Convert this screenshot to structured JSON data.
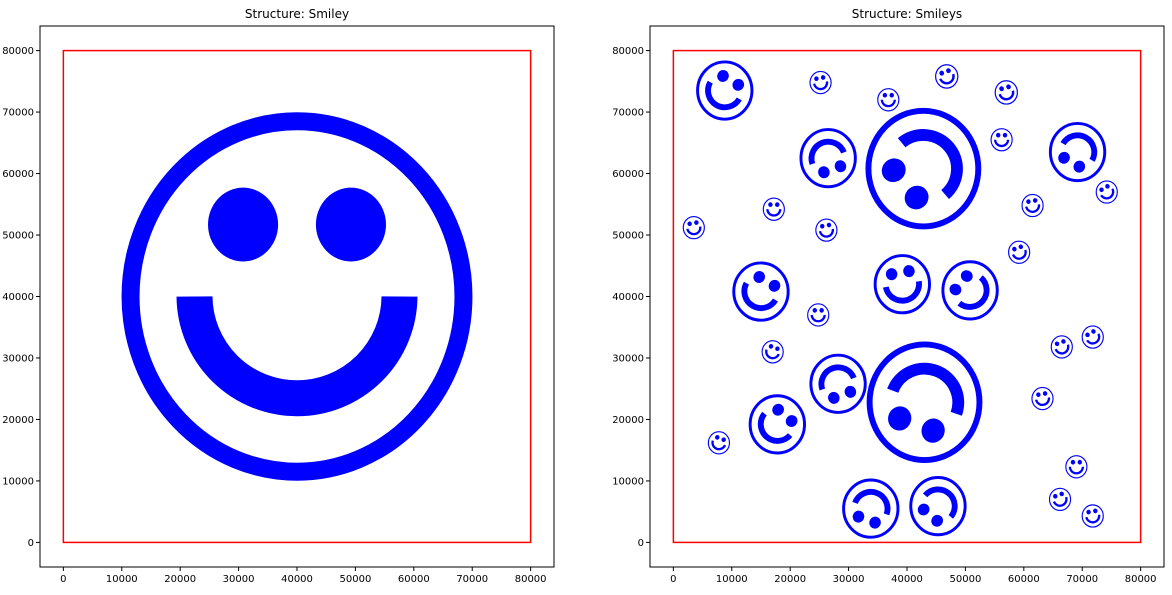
{
  "chart_data": [
    {
      "type": "scatter",
      "title": "Structure: Smiley",
      "xlim": [
        -4000,
        84000
      ],
      "ylim": [
        -4000,
        84000
      ],
      "xticks": [
        0,
        10000,
        20000,
        30000,
        40000,
        50000,
        60000,
        70000,
        80000
      ],
      "yticks": [
        0,
        10000,
        20000,
        30000,
        40000,
        50000,
        60000,
        70000,
        80000
      ],
      "grid": false,
      "colors": {
        "boundary": "#ff0000",
        "shape": "#0000ff"
      },
      "boundary": {
        "x0": 0,
        "y0": 0,
        "x1": 80000,
        "y1": 80000
      },
      "smileys": [
        {
          "x": 40000,
          "y": 40000,
          "r": 30000
        }
      ]
    },
    {
      "type": "scatter",
      "title": "Structure: Smileys",
      "xlim": [
        -4000,
        84000
      ],
      "ylim": [
        -4000,
        84000
      ],
      "xticks": [
        0,
        10000,
        20000,
        30000,
        40000,
        50000,
        60000,
        70000,
        80000
      ],
      "yticks": [
        0,
        10000,
        20000,
        30000,
        40000,
        50000,
        60000,
        70000,
        80000
      ],
      "grid": false,
      "colors": {
        "boundary": "#ff0000",
        "shape": "#0000ff"
      },
      "boundary": {
        "x0": 0,
        "y0": 0,
        "x1": 80000,
        "y1": 80000
      },
      "smileys": [
        {
          "x": 8800,
          "y": 73500,
          "r": 4900,
          "rot": -30
        },
        {
          "x": 25200,
          "y": 74800,
          "r": 1900,
          "rot": 10
        },
        {
          "x": 36800,
          "y": 72000,
          "r": 1900,
          "rot": 0
        },
        {
          "x": 46800,
          "y": 75800,
          "r": 2000,
          "rot": 20
        },
        {
          "x": 57000,
          "y": 73200,
          "r": 2000,
          "rot": 15
        },
        {
          "x": 26500,
          "y": 62500,
          "r": 4900,
          "rot": 200
        },
        {
          "x": 42800,
          "y": 60800,
          "r": 9900,
          "rot": 130
        },
        {
          "x": 56200,
          "y": 65500,
          "r": 1900,
          "rot": 0
        },
        {
          "x": 69200,
          "y": 63500,
          "r": 4900,
          "rot": 150
        },
        {
          "x": 61500,
          "y": 54800,
          "r": 1900,
          "rot": 10
        },
        {
          "x": 74200,
          "y": 57000,
          "r": 1900,
          "rot": 30
        },
        {
          "x": 3500,
          "y": 51200,
          "r": 1900,
          "rot": 10
        },
        {
          "x": 17200,
          "y": 54200,
          "r": 1900,
          "rot": 0
        },
        {
          "x": 26200,
          "y": 50800,
          "r": 1900,
          "rot": 10
        },
        {
          "x": 59200,
          "y": 47200,
          "r": 1900,
          "rot": 20
        },
        {
          "x": 15000,
          "y": 40800,
          "r": 4900,
          "rot": -30
        },
        {
          "x": 39200,
          "y": 42000,
          "r": 4900,
          "rot": 10
        },
        {
          "x": 50800,
          "y": 41000,
          "r": 4900,
          "rot": 50
        },
        {
          "x": 24800,
          "y": 37000,
          "r": 1900,
          "rot": 0
        },
        {
          "x": 66500,
          "y": 31800,
          "r": 1900,
          "rot": 20
        },
        {
          "x": 71800,
          "y": 33400,
          "r": 1900,
          "rot": 30
        },
        {
          "x": 17000,
          "y": 31000,
          "r": 1900,
          "rot": -20
        },
        {
          "x": 28200,
          "y": 25800,
          "r": 4900,
          "rot": 200
        },
        {
          "x": 43000,
          "y": 22800,
          "r": 9900,
          "rot": 160
        },
        {
          "x": 63200,
          "y": 23400,
          "r": 1900,
          "rot": 10
        },
        {
          "x": 17800,
          "y": 19200,
          "r": 4900,
          "rot": -40
        },
        {
          "x": 7800,
          "y": 16200,
          "r": 1900,
          "rot": -20
        },
        {
          "x": 69000,
          "y": 12300,
          "r": 1900,
          "rot": 0
        },
        {
          "x": 66200,
          "y": 7000,
          "r": 1900,
          "rot": 20
        },
        {
          "x": 71800,
          "y": 4300,
          "r": 1900,
          "rot": 10
        },
        {
          "x": 33800,
          "y": 5500,
          "r": 4900,
          "rot": 160
        },
        {
          "x": 45300,
          "y": 5900,
          "r": 4900,
          "rot": 140
        }
      ]
    }
  ]
}
